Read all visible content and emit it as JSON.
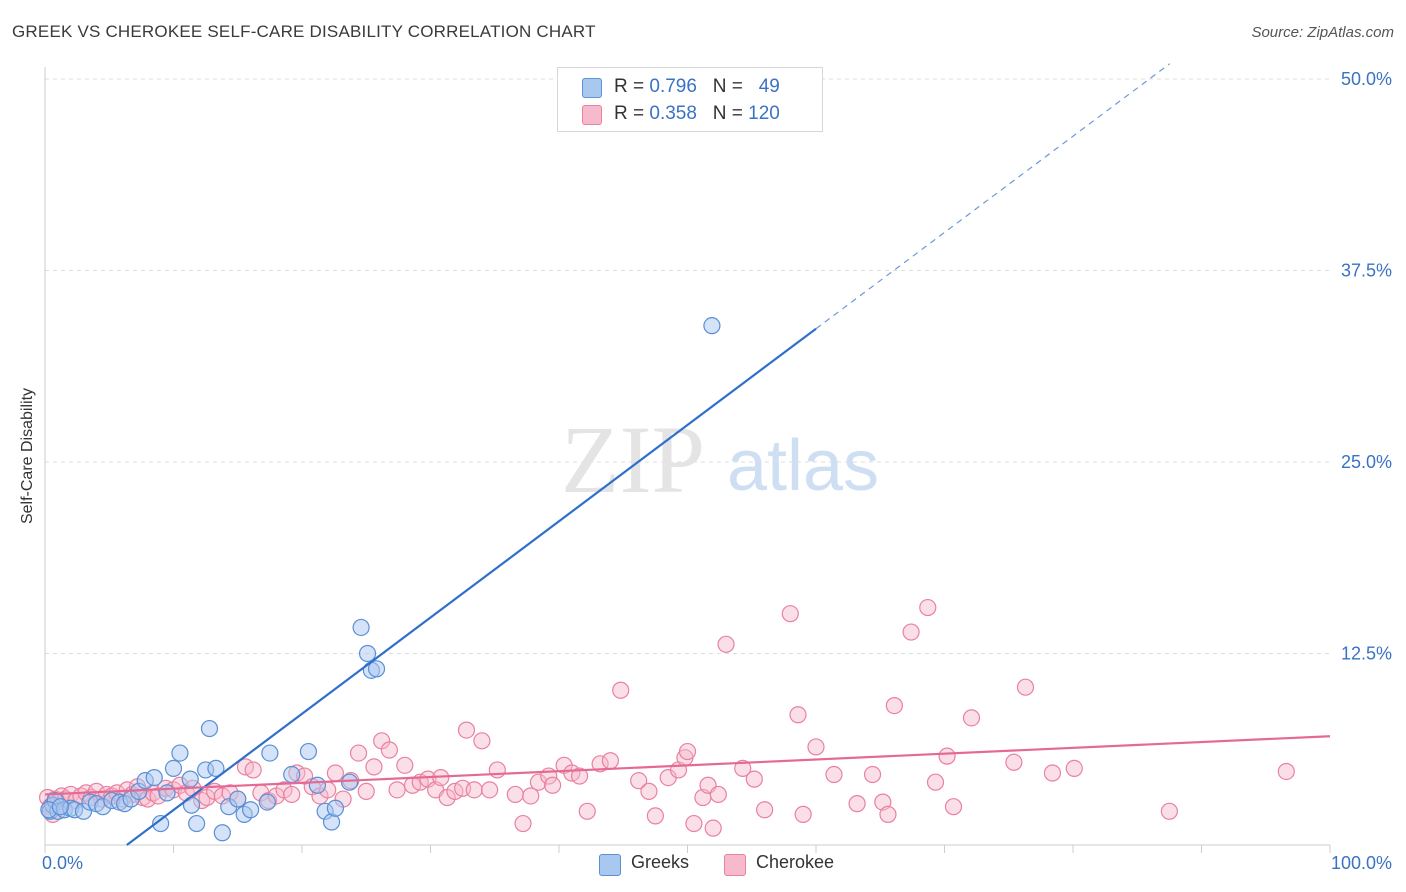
{
  "title": "GREEK VS CHEROKEE SELF-CARE DISABILITY CORRELATION CHART",
  "source": "Source: ZipAtlas.com",
  "watermark": {
    "zip": "ZIP",
    "atlas": "atlas"
  },
  "legend": {
    "greeks": {
      "r_label": "R = ",
      "r_value": "0.796",
      "n_label": "N = ",
      "n_value": "49"
    },
    "cherokee": {
      "r_label": "R = ",
      "r_value": "0.358",
      "n_label": "N = ",
      "n_value": "120"
    }
  },
  "colors": {
    "greeks_fill": "#a9c8f0",
    "greeks_stroke": "#5b8fd6",
    "greeks_line": "#2f6fcb",
    "cherokee_fill": "#f7b9cc",
    "cherokee_stroke": "#e9819f",
    "cherokee_line": "#e56a93",
    "tick_text": "#3a73c4",
    "grid": "#dddddd"
  },
  "chart_data": {
    "type": "scatter",
    "title": "GREEK VS CHEROKEE SELF-CARE DISABILITY CORRELATION CHART",
    "xlabel": "",
    "ylabel": "Self-Care Disability",
    "xlim": [
      0,
      100
    ],
    "ylim": [
      0,
      50
    ],
    "x_tick_labels": [
      "0.0%",
      "100.0%"
    ],
    "y_ticks": [
      12.5,
      25.0,
      37.5,
      50.0
    ],
    "y_tick_labels": [
      "12.5%",
      "25.0%",
      "37.5%",
      "50.0%"
    ],
    "grid": "horizontal dashed",
    "series": [
      {
        "name": "Greeks",
        "trend": {
          "x0": 0,
          "y0": -4.0,
          "x1": 60,
          "y1": 33.7,
          "dash_to_x": 100
        },
        "points": [
          [
            0.4,
            2.2
          ],
          [
            0.6,
            2.6
          ],
          [
            0.8,
            2.9
          ],
          [
            1.0,
            2.2
          ],
          [
            1.5,
            2.3
          ],
          [
            2.0,
            2.4
          ],
          [
            2.3,
            2.3
          ],
          [
            3.0,
            2.2
          ],
          [
            3.5,
            2.8
          ],
          [
            4.0,
            2.7
          ],
          [
            4.5,
            2.5
          ],
          [
            5.2,
            2.9
          ],
          [
            5.8,
            2.8
          ],
          [
            6.2,
            2.7
          ],
          [
            6.7,
            3.0
          ],
          [
            7.3,
            3.5
          ],
          [
            7.8,
            4.2
          ],
          [
            8.5,
            4.4
          ],
          [
            9.0,
            1.4
          ],
          [
            9.5,
            3.4
          ],
          [
            10.0,
            5.0
          ],
          [
            10.5,
            6.0
          ],
          [
            11.3,
            4.3
          ],
          [
            11.4,
            2.6
          ],
          [
            11.8,
            1.4
          ],
          [
            12.5,
            4.9
          ],
          [
            12.8,
            7.6
          ],
          [
            13.3,
            5.0
          ],
          [
            13.8,
            0.8
          ],
          [
            14.3,
            2.5
          ],
          [
            15.0,
            3.0
          ],
          [
            15.5,
            2.0
          ],
          [
            16.0,
            2.3
          ],
          [
            17.3,
            2.8
          ],
          [
            17.5,
            6.0
          ],
          [
            19.2,
            4.6
          ],
          [
            20.5,
            6.1
          ],
          [
            21.2,
            3.9
          ],
          [
            21.8,
            2.2
          ],
          [
            22.3,
            1.5
          ],
          [
            22.6,
            2.4
          ],
          [
            23.7,
            4.1
          ],
          [
            24.6,
            14.2
          ],
          [
            25.1,
            12.5
          ],
          [
            25.4,
            11.4
          ],
          [
            25.8,
            11.5
          ],
          [
            51.9,
            33.9
          ],
          [
            0.3,
            2.3
          ],
          [
            1.2,
            2.5
          ]
        ]
      },
      {
        "name": "Cherokee",
        "trend": {
          "x0": 0,
          "y0": 3.3,
          "x1": 100,
          "y1": 7.1
        },
        "points": [
          [
            0.2,
            3.1
          ],
          [
            0.4,
            2.5
          ],
          [
            0.6,
            2.0
          ],
          [
            0.8,
            3.0
          ],
          [
            1.0,
            2.8
          ],
          [
            1.3,
            3.2
          ],
          [
            1.6,
            3.0
          ],
          [
            2.0,
            3.3
          ],
          [
            2.4,
            2.9
          ],
          [
            2.8,
            3.2
          ],
          [
            3.2,
            3.4
          ],
          [
            3.6,
            3.1
          ],
          [
            4.0,
            3.5
          ],
          [
            4.4,
            3.0
          ],
          [
            4.8,
            3.3
          ],
          [
            5.2,
            3.2
          ],
          [
            5.6,
            3.4
          ],
          [
            6.0,
            3.0
          ],
          [
            6.4,
            3.6
          ],
          [
            6.8,
            3.3
          ],
          [
            7.2,
            3.8
          ],
          [
            7.6,
            3.1
          ],
          [
            8.0,
            3.0
          ],
          [
            8.4,
            3.4
          ],
          [
            8.8,
            3.2
          ],
          [
            9.4,
            3.7
          ],
          [
            10.0,
            3.6
          ],
          [
            10.5,
            3.9
          ],
          [
            11.0,
            3.4
          ],
          [
            11.5,
            3.7
          ],
          [
            12.2,
            2.9
          ],
          [
            12.6,
            3.1
          ],
          [
            13.2,
            3.5
          ],
          [
            13.8,
            3.2
          ],
          [
            14.4,
            3.4
          ],
          [
            15.0,
            3.0
          ],
          [
            15.6,
            5.1
          ],
          [
            16.2,
            4.9
          ],
          [
            16.8,
            3.4
          ],
          [
            17.4,
            2.9
          ],
          [
            18.0,
            3.2
          ],
          [
            18.6,
            3.6
          ],
          [
            19.2,
            3.3
          ],
          [
            19.6,
            4.7
          ],
          [
            20.2,
            4.5
          ],
          [
            20.8,
            3.8
          ],
          [
            21.4,
            3.2
          ],
          [
            22.0,
            3.6
          ],
          [
            22.6,
            4.7
          ],
          [
            23.2,
            3.0
          ],
          [
            23.8,
            4.2
          ],
          [
            24.4,
            6.0
          ],
          [
            25.0,
            3.5
          ],
          [
            25.6,
            5.1
          ],
          [
            26.2,
            6.8
          ],
          [
            26.8,
            6.2
          ],
          [
            27.4,
            3.6
          ],
          [
            28.0,
            5.2
          ],
          [
            28.6,
            3.9
          ],
          [
            29.2,
            4.1
          ],
          [
            29.8,
            4.3
          ],
          [
            30.4,
            3.6
          ],
          [
            30.8,
            4.4
          ],
          [
            31.3,
            3.1
          ],
          [
            31.9,
            3.5
          ],
          [
            32.5,
            3.7
          ],
          [
            32.8,
            7.5
          ],
          [
            33.4,
            3.6
          ],
          [
            34.0,
            6.8
          ],
          [
            34.6,
            3.6
          ],
          [
            35.2,
            4.9
          ],
          [
            36.6,
            3.3
          ],
          [
            37.2,
            1.4
          ],
          [
            37.8,
            3.2
          ],
          [
            38.4,
            4.1
          ],
          [
            39.2,
            4.5
          ],
          [
            39.5,
            3.9
          ],
          [
            40.4,
            5.2
          ],
          [
            41.0,
            4.7
          ],
          [
            41.6,
            4.5
          ],
          [
            42.2,
            2.2
          ],
          [
            43.2,
            5.3
          ],
          [
            44.0,
            5.5
          ],
          [
            44.8,
            10.1
          ],
          [
            46.2,
            4.2
          ],
          [
            47.0,
            3.5
          ],
          [
            47.5,
            1.9
          ],
          [
            48.5,
            4.4
          ],
          [
            49.3,
            4.9
          ],
          [
            49.8,
            5.7
          ],
          [
            50.0,
            6.1
          ],
          [
            50.5,
            1.4
          ],
          [
            51.2,
            3.1
          ],
          [
            51.6,
            3.9
          ],
          [
            52.0,
            1.1
          ],
          [
            52.4,
            3.3
          ],
          [
            53.0,
            13.1
          ],
          [
            54.3,
            5.0
          ],
          [
            55.2,
            4.3
          ],
          [
            56.0,
            2.3
          ],
          [
            58.0,
            15.1
          ],
          [
            58.6,
            8.5
          ],
          [
            59.0,
            2.0
          ],
          [
            60.0,
            6.4
          ],
          [
            61.4,
            4.6
          ],
          [
            63.2,
            2.7
          ],
          [
            64.4,
            4.6
          ],
          [
            65.2,
            2.8
          ],
          [
            65.6,
            2.0
          ],
          [
            66.1,
            9.1
          ],
          [
            67.4,
            13.9
          ],
          [
            68.7,
            15.5
          ],
          [
            69.3,
            4.1
          ],
          [
            70.2,
            5.8
          ],
          [
            70.7,
            2.5
          ],
          [
            72.1,
            8.3
          ],
          [
            75.4,
            5.4
          ],
          [
            76.3,
            10.3
          ],
          [
            78.4,
            4.7
          ],
          [
            80.1,
            5.0
          ],
          [
            87.5,
            2.2
          ],
          [
            96.6,
            4.8
          ]
        ]
      }
    ]
  },
  "bottom_legend": {
    "greeks": "Greeks",
    "cherokee": "Cherokee"
  }
}
